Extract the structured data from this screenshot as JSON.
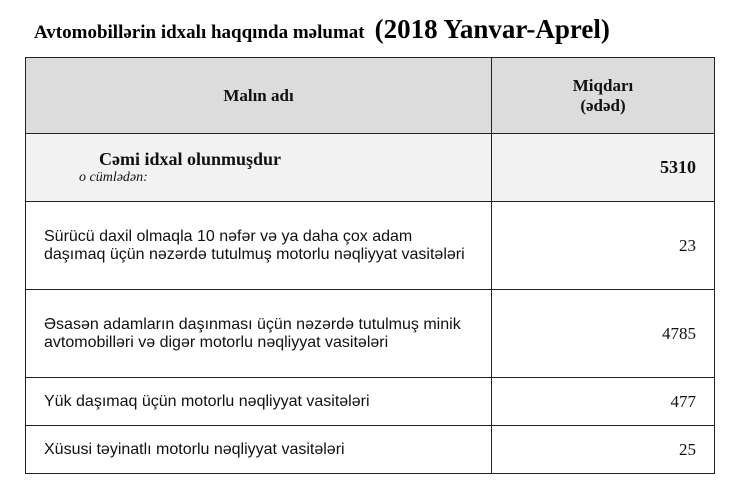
{
  "title": {
    "main": "Avtomobillərin idxalı haqqında məlumat",
    "period": "(2018 Yanvar-Aprel)"
  },
  "table": {
    "headers": {
      "name": "Malın adı",
      "qty_line1": "Miqdarı",
      "qty_line2": "(ədəd)"
    },
    "total": {
      "label": "Cəmi idxal olunmuşdur",
      "sublabel": "o cümlədən:",
      "value": "5310"
    },
    "rows": [
      {
        "name_line1": "Sürücü daxil olmaqla 10 nəfər və ya daha çox adam",
        "name_line2": "daşımaq üçün nəzərdə tutulmuş motorlu nəqliyyat vasitələri",
        "value": "23"
      },
      {
        "name_line1": "Əsasən adamların daşınması üçün nəzərdə tutulmuş minik",
        "name_line2": "avtomobilləri və digər motorlu nəqliyyat vasitələri",
        "value": "4785"
      },
      {
        "name_line1": "Yük daşımaq üçün motorlu nəqliyyat vasitələri",
        "value": "477"
      },
      {
        "name_line1": "Xüsusi təyinatlı motorlu nəqliyyat vasitələri",
        "value": "25"
      }
    ]
  }
}
